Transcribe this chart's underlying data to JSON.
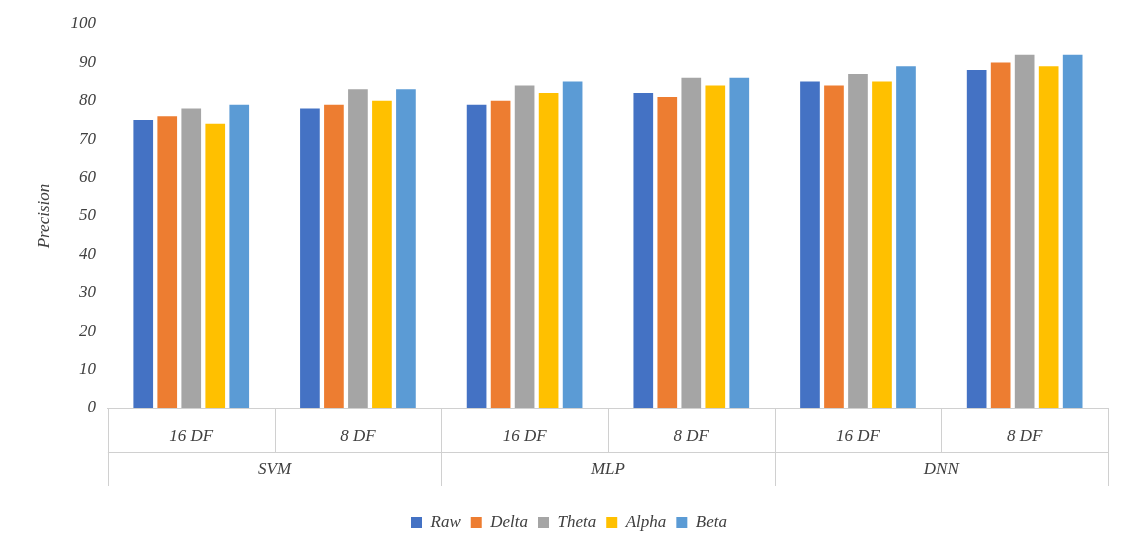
{
  "chart_data": {
    "type": "bar",
    "ylabel": "Precision",
    "categories": [
      "16 DF",
      "8 DF",
      "16 DF",
      "8 DF",
      "16 DF",
      "8 DF"
    ],
    "annotations": [
      "SVM",
      "MLP",
      "DNN"
    ],
    "series": [
      {
        "name": "Raw",
        "color": "#4472c4",
        "values": [
          75,
          78,
          79,
          82,
          85,
          88
        ]
      },
      {
        "name": "Delta",
        "color": "#ed7d31",
        "values": [
          76,
          79,
          80,
          81,
          84,
          90
        ]
      },
      {
        "name": "Theta",
        "color": "#a5a5a5",
        "values": [
          78,
          83,
          84,
          86,
          87,
          92
        ]
      },
      {
        "name": "Alpha",
        "color": "#ffc000",
        "values": [
          74,
          80,
          82,
          84,
          85,
          89
        ]
      },
      {
        "name": "Beta",
        "color": "#5b9bd5",
        "values": [
          79,
          83,
          85,
          86,
          89,
          92
        ]
      }
    ],
    "ylim": [
      0,
      100
    ],
    "yticks": [
      0,
      10,
      20,
      30,
      40,
      50,
      60,
      70,
      80,
      90,
      100
    ],
    "grid": false,
    "legend": "bottom"
  }
}
